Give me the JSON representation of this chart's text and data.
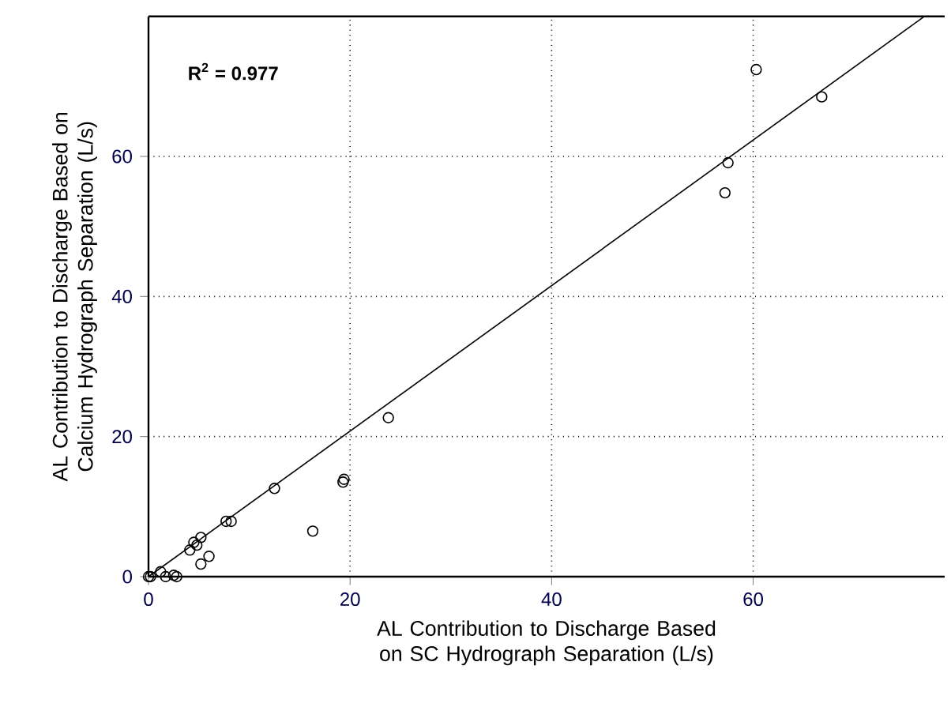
{
  "chart_data": {
    "type": "scatter",
    "xlabel": "AL Contribution to Discharge Based on SC Hydrograph Separation (L/s)",
    "ylabel": "AL Contribution to Discharge Based on Calcium Hydrograph Separation (L/s)",
    "annotations": [
      "R$^{2}$ = 0.977"
    ],
    "xlim": [
      0,
      79
    ],
    "ylim": [
      0,
      80
    ],
    "xticks": [
      0,
      20,
      40,
      60
    ],
    "yticks": [
      0,
      20,
      40,
      60
    ],
    "grid": true,
    "series": [
      {
        "color": "#000000",
        "marker": "circle",
        "x": [
          60.3,
          66.8,
          57.5,
          57.2,
          23.8,
          12.5,
          7.7,
          8.2,
          16.3,
          19.3,
          19.4,
          4.5,
          4.1,
          5.2,
          6.0,
          5.2,
          4.8,
          0,
          1.2,
          1.7,
          2.5,
          2.8,
          0.2
        ],
        "values": [
          72.4,
          68.5,
          59.1,
          54.8,
          22.7,
          12.6,
          7.9,
          7.9,
          6.5,
          13.5,
          13.9,
          4.9,
          3.8,
          5.6,
          2.9,
          1.8,
          4.5,
          0,
          0.7,
          0,
          0.2,
          0,
          0
        ]
      },
      {
        "type": "line",
        "color": "#000000",
        "marker": "none",
        "line_style": "solid",
        "x": [
          0,
          77
        ],
        "values": [
          0,
          80
        ]
      }
    ]
  }
}
